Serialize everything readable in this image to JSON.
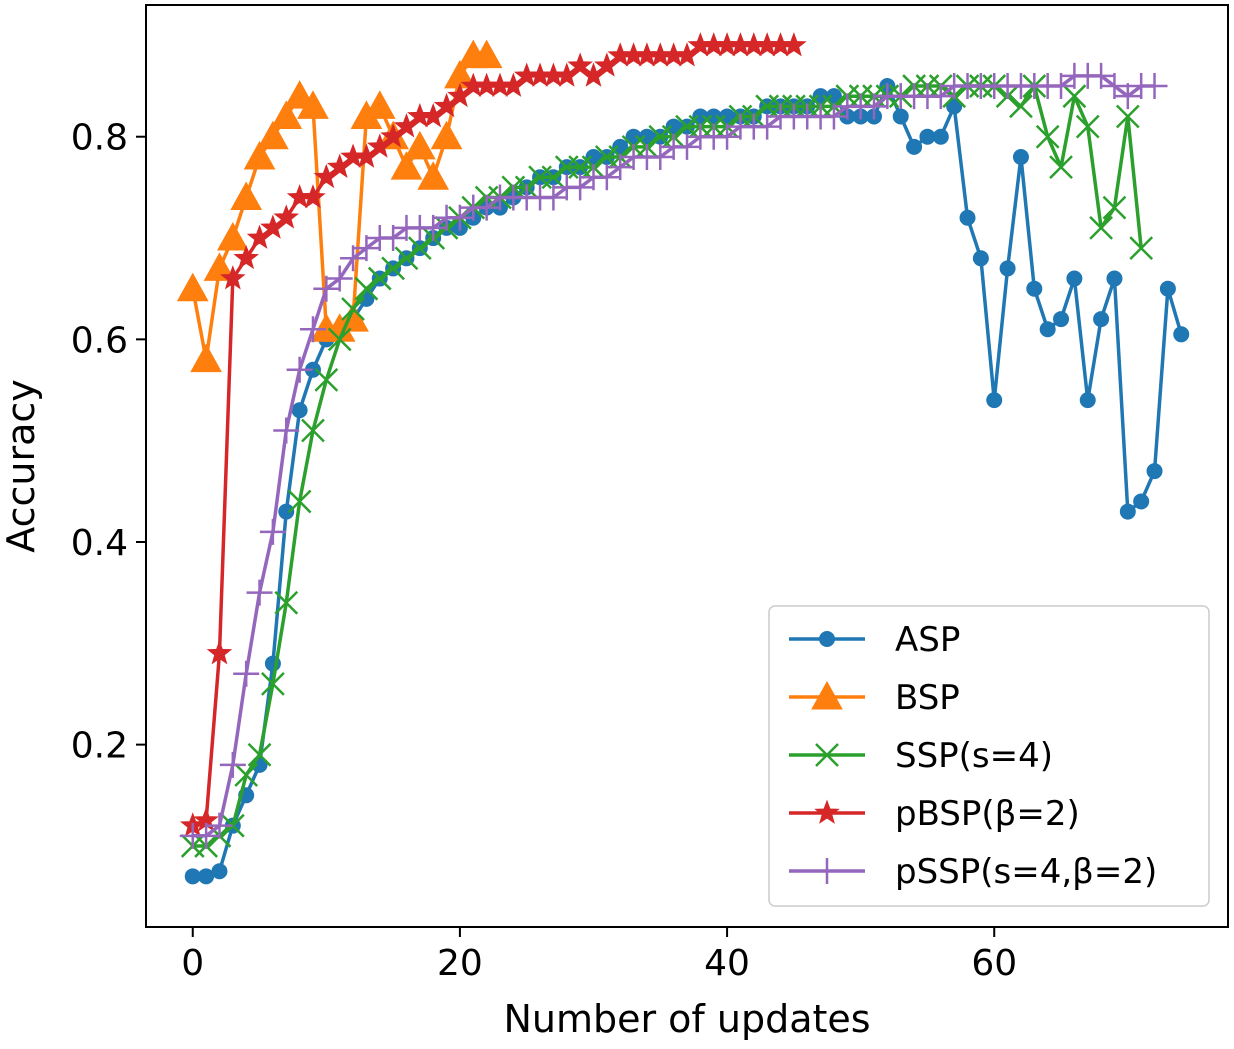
{
  "chart_data": {
    "type": "line",
    "xlabel": "Number of updates",
    "ylabel": "Accuracy",
    "xlim": [
      -3.5,
      77.5
    ],
    "ylim": [
      0.02,
      0.93
    ],
    "xticks": [
      0,
      20,
      40,
      60
    ],
    "xtick_labels": [
      "0",
      "20",
      "40",
      "60"
    ],
    "yticks": [
      0.2,
      0.4,
      0.6,
      0.8
    ],
    "ytick_labels": [
      "0.2",
      "0.4",
      "0.6",
      "0.8"
    ],
    "grid": false,
    "legend_position": "lower-right",
    "series": [
      {
        "name": "ASP",
        "color": "#1f77b4",
        "marker": "circle",
        "x": [
          0,
          1,
          2,
          3,
          4,
          5,
          6,
          7,
          8,
          9,
          10,
          11,
          12,
          13,
          14,
          15,
          16,
          17,
          18,
          19,
          20,
          21,
          22,
          23,
          24,
          25,
          26,
          27,
          28,
          29,
          30,
          31,
          32,
          33,
          34,
          35,
          36,
          37,
          38,
          39,
          40,
          41,
          42,
          43,
          44,
          45,
          46,
          47,
          48,
          49,
          50,
          51,
          52,
          53,
          54,
          55,
          56,
          57,
          58,
          59,
          60,
          61,
          62,
          63,
          64,
          65,
          66,
          67,
          68,
          69,
          70,
          71,
          72,
          73,
          74
        ],
        "y": [
          0.07,
          0.07,
          0.075,
          0.12,
          0.15,
          0.18,
          0.28,
          0.43,
          0.53,
          0.57,
          0.6,
          0.61,
          0.62,
          0.64,
          0.66,
          0.67,
          0.68,
          0.69,
          0.7,
          0.71,
          0.71,
          0.72,
          0.73,
          0.73,
          0.74,
          0.75,
          0.76,
          0.76,
          0.77,
          0.77,
          0.78,
          0.78,
          0.79,
          0.8,
          0.8,
          0.8,
          0.81,
          0.81,
          0.82,
          0.82,
          0.82,
          0.82,
          0.82,
          0.83,
          0.83,
          0.83,
          0.83,
          0.84,
          0.84,
          0.82,
          0.82,
          0.82,
          0.85,
          0.82,
          0.79,
          0.8,
          0.8,
          0.83,
          0.72,
          0.68,
          0.54,
          0.67,
          0.78,
          0.65,
          0.61,
          0.62,
          0.66,
          0.54,
          0.62,
          0.66,
          0.43,
          0.44,
          0.47,
          0.65,
          0.605
        ]
      },
      {
        "name": "BSP",
        "color": "#ff7f0e",
        "marker": "triangle",
        "x": [
          0,
          1,
          2,
          3,
          4,
          5,
          6,
          7,
          8,
          9,
          10,
          11,
          12,
          13,
          14,
          15,
          16,
          17,
          18,
          19,
          20,
          21,
          22
        ],
        "y": [
          0.65,
          0.58,
          0.67,
          0.7,
          0.74,
          0.78,
          0.8,
          0.82,
          0.84,
          0.83,
          0.61,
          0.61,
          0.62,
          0.82,
          0.83,
          0.8,
          0.77,
          0.79,
          0.76,
          0.8,
          0.86,
          0.88,
          0.88
        ]
      },
      {
        "name": "SSP(s=4)",
        "color": "#2ca02c",
        "marker": "x",
        "x": [
          0,
          1,
          2,
          3,
          4,
          5,
          6,
          7,
          8,
          9,
          10,
          11,
          12,
          13,
          14,
          15,
          16,
          17,
          18,
          19,
          20,
          21,
          22,
          23,
          24,
          25,
          26,
          27,
          28,
          29,
          30,
          31,
          32,
          33,
          34,
          35,
          36,
          37,
          38,
          39,
          40,
          41,
          42,
          43,
          44,
          45,
          46,
          47,
          48,
          49,
          50,
          51,
          52,
          53,
          54,
          55,
          56,
          57,
          58,
          59,
          60,
          61,
          62,
          63,
          64,
          65,
          66,
          67,
          68,
          69,
          70,
          71
        ],
        "y": [
          0.1,
          0.1,
          0.11,
          0.12,
          0.17,
          0.19,
          0.26,
          0.34,
          0.44,
          0.51,
          0.56,
          0.6,
          0.63,
          0.65,
          0.66,
          0.67,
          0.68,
          0.69,
          0.7,
          0.71,
          0.72,
          0.73,
          0.74,
          0.74,
          0.75,
          0.75,
          0.76,
          0.76,
          0.77,
          0.77,
          0.77,
          0.78,
          0.78,
          0.79,
          0.79,
          0.8,
          0.8,
          0.81,
          0.81,
          0.81,
          0.81,
          0.82,
          0.82,
          0.83,
          0.83,
          0.83,
          0.83,
          0.83,
          0.83,
          0.84,
          0.84,
          0.84,
          0.84,
          0.84,
          0.85,
          0.85,
          0.85,
          0.84,
          0.85,
          0.85,
          0.85,
          0.84,
          0.83,
          0.85,
          0.8,
          0.77,
          0.84,
          0.81,
          0.71,
          0.73,
          0.82,
          0.69
        ]
      },
      {
        "name": "pBSP(β=2)",
        "color": "#d62728",
        "marker": "star",
        "x": [
          0,
          1,
          2,
          3,
          4,
          5,
          6,
          7,
          8,
          9,
          10,
          11,
          12,
          13,
          14,
          15,
          16,
          17,
          18,
          19,
          20,
          21,
          22,
          23,
          24,
          25,
          26,
          27,
          28,
          29,
          30,
          31,
          32,
          33,
          34,
          35,
          36,
          37,
          38,
          39,
          40,
          41,
          42,
          43,
          44,
          45
        ],
        "y": [
          0.12,
          0.125,
          0.29,
          0.66,
          0.68,
          0.7,
          0.71,
          0.72,
          0.74,
          0.74,
          0.76,
          0.77,
          0.78,
          0.78,
          0.79,
          0.8,
          0.81,
          0.82,
          0.82,
          0.83,
          0.84,
          0.85,
          0.85,
          0.85,
          0.85,
          0.86,
          0.86,
          0.86,
          0.86,
          0.87,
          0.86,
          0.87,
          0.88,
          0.88,
          0.88,
          0.88,
          0.88,
          0.88,
          0.89,
          0.89,
          0.89,
          0.89,
          0.89,
          0.89,
          0.89,
          0.89
        ]
      },
      {
        "name": "pSSP(s=4,β=2)",
        "color": "#9467bd",
        "marker": "plus",
        "x": [
          0,
          1,
          2,
          3,
          4,
          5,
          6,
          7,
          8,
          9,
          10,
          11,
          12,
          13,
          14,
          15,
          16,
          17,
          18,
          19,
          20,
          21,
          22,
          23,
          24,
          25,
          26,
          27,
          28,
          29,
          30,
          31,
          32,
          33,
          34,
          35,
          36,
          37,
          38,
          39,
          40,
          41,
          42,
          43,
          44,
          45,
          46,
          47,
          48,
          49,
          50,
          51,
          52,
          53,
          54,
          55,
          56,
          57,
          58,
          59,
          60,
          61,
          62,
          63,
          64,
          65,
          66,
          67,
          68,
          69,
          70,
          71,
          72
        ],
        "y": [
          0.11,
          0.11,
          0.12,
          0.18,
          0.27,
          0.35,
          0.41,
          0.51,
          0.57,
          0.61,
          0.65,
          0.66,
          0.68,
          0.69,
          0.7,
          0.7,
          0.71,
          0.71,
          0.71,
          0.72,
          0.72,
          0.73,
          0.73,
          0.74,
          0.74,
          0.74,
          0.74,
          0.74,
          0.75,
          0.75,
          0.76,
          0.76,
          0.77,
          0.78,
          0.78,
          0.78,
          0.79,
          0.79,
          0.8,
          0.8,
          0.8,
          0.81,
          0.81,
          0.81,
          0.82,
          0.82,
          0.82,
          0.82,
          0.82,
          0.83,
          0.83,
          0.83,
          0.84,
          0.84,
          0.84,
          0.84,
          0.84,
          0.85,
          0.85,
          0.85,
          0.85,
          0.85,
          0.85,
          0.85,
          0.85,
          0.85,
          0.86,
          0.86,
          0.86,
          0.85,
          0.84,
          0.85,
          0.85
        ]
      }
    ]
  }
}
